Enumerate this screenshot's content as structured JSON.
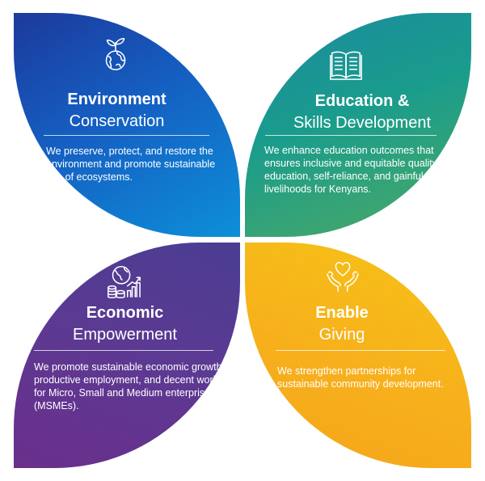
{
  "pillars": {
    "environment": {
      "title_bold": "Environment",
      "title_light": "Conservation",
      "description": "We preserve, protect, and restore the environment and promote sustainable use of ecosystems.",
      "icon": "seedling-globe-icon",
      "color": "#1c5fc0"
    },
    "education": {
      "title_bold": "Education &",
      "title_light": "Skills Development",
      "description": "We enhance education outcomes that ensures inclusive and equitable quality education, self-reliance, and gainful livelihoods for Kenyans.",
      "icon": "open-book-icon",
      "color": "#1a9c8c"
    },
    "economic": {
      "title_bold": "Economic",
      "title_light": "Empowerment",
      "description": "We promote sustainable economic growth, productive employment, and decent work for Micro, Small and Medium enterprises (MSMEs).",
      "icon": "globe-coins-chart-icon",
      "color": "#5b3a92"
    },
    "giving": {
      "title_bold": "Enable",
      "title_light": "Giving",
      "description": "We strengthen partnerships for sustainable community development.",
      "icon": "hands-heart-icon",
      "color": "#f6b31c"
    }
  }
}
